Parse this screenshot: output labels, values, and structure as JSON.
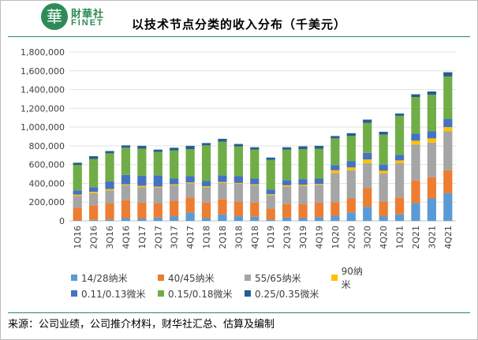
{
  "header": {
    "logo_mark": "華",
    "logo_cn": "財華社",
    "logo_en": "FINET"
  },
  "chart_data": {
    "type": "bar",
    "stacked": true,
    "title": "以技术节点分类的收入分布（千美元）",
    "xlabel": "",
    "ylabel": "",
    "ylim": [
      0,
      1800000
    ],
    "yticks": [
      "0",
      "200,000",
      "400,000",
      "600,000",
      "800,000",
      "1,000,000",
      "1,200,000",
      "1,400,000",
      "1,600,000",
      "1,800,000"
    ],
    "grid": true,
    "legend_position": "bottom",
    "categories": [
      "1Q16",
      "2Q16",
      "3Q16",
      "4Q16",
      "1Q17",
      "2Q17",
      "3Q17",
      "4Q17",
      "1Q18",
      "2Q18",
      "3Q18",
      "4Q18",
      "1Q19",
      "2Q19",
      "3Q19",
      "4Q19",
      "1Q20",
      "2Q20",
      "3Q20",
      "4Q20",
      "1Q21",
      "2Q21",
      "3Q21",
      "4Q21"
    ],
    "series": [
      {
        "name": "14/28纳米",
        "color": "#5b9bd5",
        "values": [
          5000,
          10000,
          15000,
          30000,
          25000,
          35000,
          50000,
          90000,
          30000,
          70000,
          50000,
          45000,
          15000,
          35000,
          30000,
          40000,
          55000,
          90000,
          150000,
          50000,
          70000,
          190000,
          240000,
          295000
        ]
      },
      {
        "name": "40/45纳米",
        "color": "#ed7d31",
        "values": [
          135000,
          155000,
          170000,
          190000,
          170000,
          150000,
          165000,
          160000,
          165000,
          160000,
          155000,
          150000,
          115000,
          145000,
          150000,
          155000,
          145000,
          150000,
          200000,
          155000,
          180000,
          240000,
          225000,
          245000
        ]
      },
      {
        "name": "55/65纳米",
        "color": "#a5a5a5",
        "values": [
          125000,
          130000,
          140000,
          160000,
          165000,
          170000,
          165000,
          150000,
          165000,
          175000,
          190000,
          185000,
          145000,
          185000,
          190000,
          190000,
          310000,
          300000,
          265000,
          300000,
          365000,
          385000,
          370000,
          415000
        ]
      },
      {
        "name": "90纳米",
        "color": "#ffc000",
        "values": [
          15000,
          15000,
          15000,
          10000,
          15000,
          10000,
          10000,
          10000,
          10000,
          10000,
          10000,
          10000,
          10000,
          15000,
          15000,
          10000,
          30000,
          30000,
          40000,
          30000,
          30000,
          40000,
          45000,
          45000
        ]
      },
      {
        "name": "0.11/0.13微米",
        "color": "#4472c4",
        "values": [
          45000,
          50000,
          80000,
          100000,
          105000,
          120000,
          60000,
          65000,
          55000,
          70000,
          70000,
          60000,
          50000,
          55000,
          60000,
          55000,
          55000,
          65000,
          70000,
          65000,
          60000,
          75000,
          75000,
          85000
        ]
      },
      {
        "name": "0.15/0.18微米",
        "color": "#70ad47",
        "values": [
          270000,
          300000,
          300000,
          290000,
          290000,
          250000,
          300000,
          290000,
          380000,
          360000,
          320000,
          310000,
          315000,
          325000,
          320000,
          320000,
          285000,
          270000,
          320000,
          320000,
          415000,
          390000,
          390000,
          455000
        ]
      },
      {
        "name": "0.25/0.35微米",
        "color": "#255e91",
        "values": [
          25000,
          30000,
          25000,
          25000,
          30000,
          25000,
          30000,
          35000,
          25000,
          30000,
          25000,
          25000,
          25000,
          25000,
          30000,
          30000,
          25000,
          30000,
          35000,
          30000,
          25000,
          30000,
          35000,
          45000
        ]
      }
    ]
  },
  "source_text": "来源：公司业绩，公司推介材料，财华社汇总、估算及编制"
}
